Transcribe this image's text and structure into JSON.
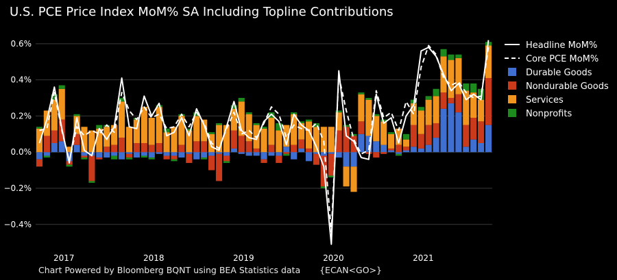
{
  "title": "U.S. PCE Price Index MoM% SA Including Topline Contributions",
  "footer": {
    "text": "Chart Powered by Bloomberg BQNT using BEA Statistics data",
    "code": "{ECAN<GO>}"
  },
  "colors": {
    "background": "#000000",
    "grid": "#3a3a3a",
    "durable": "#3f6fd0",
    "nondurable": "#cc3a1c",
    "services": "#f2951e",
    "nonprofits": "#1c8a1c",
    "line": "#ffffff"
  },
  "chart_data": {
    "type": "bar",
    "stacked": true,
    "x_start": "2016-11",
    "x_end": "2021-10",
    "x_ticks": [
      "2017",
      "2018",
      "2019",
      "2020",
      "2021"
    ],
    "y_ticks": [
      "0.6%",
      "0.4%",
      "0.2%",
      "0.0%",
      "−0.2%",
      "−0.4%"
    ],
    "ylim": [
      -0.56,
      0.66
    ],
    "legend_position": "top-right",
    "series": [
      {
        "name": "Durable Goods",
        "kind": "bar",
        "values": [
          -0.04,
          -0.02,
          0.05,
          0.06,
          -0.05,
          0.04,
          -0.02,
          -0.02,
          -0.03,
          -0.03,
          -0.02,
          -0.04,
          -0.01,
          -0.03,
          -0.02,
          -0.03,
          -0.01,
          -0.02,
          -0.02,
          -0.03,
          -0.01,
          -0.04,
          -0.03,
          -0.02,
          -0.01,
          -0.02,
          0.02,
          -0.01,
          -0.02,
          -0.02,
          -0.04,
          -0.02,
          -0.02,
          0.03,
          -0.04,
          0.02,
          -0.05,
          -0.01,
          -0.02,
          -0.01,
          -0.03,
          -0.08,
          -0.08,
          0.1,
          0.09,
          0.06,
          0.04,
          0.01,
          -0.01,
          0.01,
          0.03,
          0.02,
          0.04,
          0.08,
          0.24,
          0.27,
          0.22,
          0.03,
          0.07,
          0.05,
          0.15
        ]
      },
      {
        "name": "Nondurable Goods",
        "kind": "bar",
        "values": [
          -0.04,
          0.09,
          0.07,
          0.12,
          -0.02,
          0.06,
          -0.01,
          -0.14,
          -0.01,
          0.03,
          0.04,
          0.08,
          -0.02,
          0.05,
          0.05,
          0.04,
          0.05,
          -0.02,
          -0.02,
          0.04,
          -0.05,
          0.06,
          0.06,
          -0.08,
          -0.15,
          -0.03,
          0.1,
          0.09,
          0.06,
          0.02,
          -0.02,
          0.04,
          -0.04,
          -0.01,
          0.04,
          0.05,
          0.02,
          -0.06,
          -0.17,
          -0.12,
          0.12,
          0.14,
          0.09,
          0.07,
          -0.01,
          -0.03,
          -0.01,
          0.01,
          0.04,
          0.02,
          0.12,
          0.08,
          0.11,
          0.08,
          0.09,
          0.03,
          0.1,
          0.12,
          0.12,
          0.12,
          0.26
        ]
      },
      {
        "name": "Services",
        "kind": "bar",
        "values": [
          0.13,
          0.14,
          0.17,
          0.17,
          0.03,
          0.1,
          0.14,
          0.12,
          0.13,
          0.11,
          0.11,
          0.2,
          0.14,
          0.13,
          0.2,
          0.15,
          0.2,
          0.11,
          0.14,
          0.16,
          0.12,
          0.14,
          0.12,
          0.1,
          0.15,
          0.15,
          0.12,
          0.19,
          0.15,
          0.13,
          0.13,
          0.15,
          0.12,
          0.12,
          0.17,
          0.09,
          0.15,
          0.14,
          0.14,
          0.14,
          0.1,
          -0.11,
          -0.14,
          0.15,
          0.2,
          0.14,
          0.13,
          0.08,
          0.09,
          0.04,
          0.12,
          0.13,
          0.14,
          0.15,
          0.2,
          0.21,
          0.2,
          0.19,
          0.14,
          0.12,
          0.18
        ]
      },
      {
        "name": "Nonprofits",
        "kind": "bar",
        "values": [
          0.01,
          -0.01,
          0.03,
          0.02,
          -0.01,
          0.01,
          -0.01,
          -0.01,
          0.02,
          0.01,
          -0.02,
          0.02,
          -0.01,
          0.01,
          -0.01,
          -0.01,
          0.01,
          0.02,
          -0.01,
          0.01,
          0.01,
          0.02,
          -0.01,
          0.01,
          0.01,
          -0.01,
          0.02,
          0.02,
          0.01,
          0.01,
          0.01,
          0.03,
          0.04,
          -0.01,
          0.01,
          0.01,
          0.01,
          0.02,
          -0.01,
          -0.01,
          0.01,
          0.01,
          0.01,
          0.01,
          0.01,
          0.01,
          0.01,
          0.01,
          -0.01,
          0.03,
          0.02,
          0.02,
          0.02,
          0.04,
          0.04,
          0.03,
          0.02,
          0.04,
          0.05,
          0.06,
          0.02
        ]
      },
      {
        "name": "Headline MoM%",
        "kind": "line",
        "values": [
          0.05,
          0.18,
          0.36,
          0.13,
          -0.06,
          0.19,
          0.01,
          -0.02,
          0.13,
          0.07,
          0.14,
          0.41,
          0.14,
          0.13,
          0.31,
          0.2,
          0.27,
          0.09,
          0.11,
          0.19,
          0.09,
          0.24,
          0.15,
          0.03,
          0.01,
          0.14,
          0.28,
          0.12,
          0.08,
          0.07,
          0.17,
          0.21,
          0.17,
          0.04,
          0.21,
          0.15,
          0.12,
          0.03,
          -0.08,
          -0.51,
          0.45,
          0.09,
          0.06,
          -0.03,
          -0.04,
          0.32,
          0.16,
          0.19,
          0.05,
          0.2,
          0.26,
          0.56,
          0.58,
          0.53,
          0.43,
          0.34,
          0.38,
          0.29,
          0.32,
          0.29,
          0.62
        ]
      },
      {
        "name": "Core PCE MoM%",
        "kind": "line",
        "dash": true,
        "values": [
          0.12,
          0.13,
          0.33,
          0.12,
          -0.05,
          0.14,
          0.09,
          0.12,
          0.1,
          0.15,
          0.11,
          0.33,
          0.23,
          0.18,
          0.25,
          0.19,
          0.21,
          0.13,
          0.14,
          0.21,
          0.14,
          0.22,
          0.16,
          0.05,
          0.02,
          0.13,
          0.22,
          0.1,
          0.12,
          0.08,
          0.16,
          0.25,
          0.21,
          0.08,
          0.15,
          0.13,
          0.12,
          0.16,
          0.06,
          -0.44,
          0.42,
          0.23,
          0.07,
          -0.01,
          0.01,
          0.34,
          0.19,
          0.22,
          0.12,
          0.28,
          0.21,
          0.47,
          0.59,
          0.54,
          0.41,
          0.37,
          0.39,
          0.33,
          0.3,
          0.31,
          0.58
        ]
      }
    ]
  }
}
